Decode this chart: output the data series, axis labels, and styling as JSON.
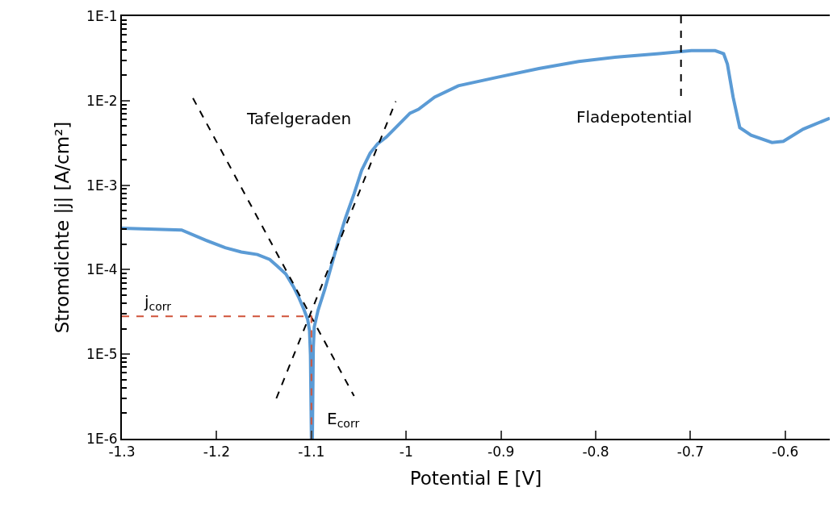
{
  "chart_data": {
    "type": "line",
    "xlabel": "Potential E [V]",
    "ylabel": "Stromdichte |j| [A/cm²]",
    "xlim": [
      -1.3,
      -0.553
    ],
    "xticks": [
      -1.3,
      -1.2,
      -1.1,
      -1,
      -0.9,
      -0.8,
      -0.7,
      -0.6
    ],
    "ylim": [
      1e-06,
      0.1
    ],
    "log": true,
    "yticks": [
      {
        "value": 1e-06,
        "label": "1E-6"
      },
      {
        "value": 1e-05,
        "label": "1E-5"
      },
      {
        "value": 0.0001,
        "label": "1E-4"
      },
      {
        "value": 0.001,
        "label": "1E-3"
      },
      {
        "value": 0.01,
        "label": "1E-2"
      },
      {
        "value": 0.1,
        "label": "1E-1"
      }
    ],
    "marker": "none",
    "series": [
      {
        "color": "#5b9bd5",
        "line_style": "solid",
        "x": [
          -1.3,
          -1.237,
          -1.212,
          -1.191,
          -1.174,
          -1.157,
          -1.144,
          -1.136,
          -1.127,
          -1.119,
          -1.113,
          -1.108,
          -1.104,
          -1.102,
          -1.101,
          -1.1,
          -1.099,
          -1.098,
          -1.097,
          -1.093,
          -1.086,
          -1.079,
          -1.072,
          -1.064,
          -1.055,
          -1.047,
          -1.038,
          -1.03,
          -1.021,
          -1.008,
          -0.996,
          -0.987,
          -0.97,
          -0.945,
          -0.903,
          -0.86,
          -0.818,
          -0.775,
          -0.733,
          -0.699,
          -0.674,
          -0.665,
          -0.661,
          -0.655,
          -0.648,
          -0.636,
          -0.614,
          -0.602,
          -0.581,
          -0.553
        ],
        "values": [
          0.00031,
          0.000295,
          0.000224,
          0.000182,
          0.000162,
          0.000151,
          0.000132,
          0.00011,
          8.9e-05,
          6.3e-05,
          4.6e-05,
          3.4e-05,
          2.6e-05,
          1.9e-05,
          9.8e-06,
          1e-06,
          1e-06,
          1.2e-05,
          2.1e-05,
          3.3e-05,
          5.8e-05,
          0.00011,
          0.00021,
          0.00041,
          0.00079,
          0.0015,
          0.0024,
          0.0031,
          0.0037,
          0.0052,
          0.0071,
          0.0079,
          0.011,
          0.015,
          0.019,
          0.024,
          0.029,
          0.033,
          0.036,
          0.039,
          0.039,
          0.036,
          0.027,
          0.011,
          0.0048,
          0.0039,
          0.0032,
          0.0033,
          0.0046,
          0.0062
        ]
      },
      {
        "color": "#000000",
        "line_style": "dashed",
        "x": [
          -1.225,
          -1.055
        ],
        "values": [
          0.0107,
          3.2e-06
        ]
      },
      {
        "color": "#000000",
        "line_style": "dashed",
        "x": [
          -1.137,
          -1.011
        ],
        "values": [
          3e-06,
          0.0098
        ]
      },
      {
        "color": "#000000",
        "line_style": "dashed",
        "x": [
          -0.71,
          -0.71
        ],
        "values": [
          0.1,
          0.0107
        ]
      },
      {
        "color": "#d0533a",
        "line_style": "dashed",
        "x": [
          -1.3,
          -1.1,
          -1.1
        ],
        "values": [
          2.8e-05,
          2.8e-05,
          1e-06
        ]
      }
    ],
    "annotations": [
      "Tafelgeraden",
      "Fladepotential",
      "j$_{corr}$",
      "E$_{corr}$"
    ]
  }
}
